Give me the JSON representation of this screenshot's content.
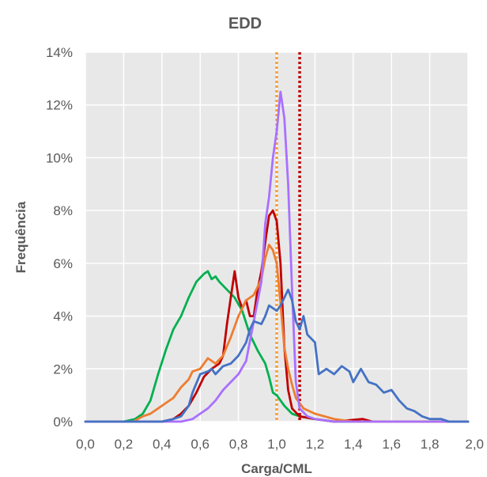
{
  "chart_data": {
    "type": "line",
    "title": "EDD",
    "xlabel": "Carga/CML",
    "ylabel": "Frequência",
    "xlim": [
      0,
      2
    ],
    "ylim": [
      0,
      0.14
    ],
    "x_ticks": [
      "0,0",
      "0,2",
      "0,4",
      "0,6",
      "0,8",
      "1,0",
      "1,2",
      "1,4",
      "1,6",
      "1,8",
      "2,0"
    ],
    "y_ticks": [
      "0%",
      "2%",
      "4%",
      "6%",
      "8%",
      "10%",
      "12%",
      "14%"
    ],
    "grid": true,
    "legend": "none",
    "background": "#e8e8e8",
    "reference_lines": [
      {
        "x": 1.0,
        "color": "#f4a040",
        "style": "dotted"
      },
      {
        "x": 1.12,
        "color": "#c00000",
        "style": "dotted"
      }
    ],
    "series": [
      {
        "color": "#00b050",
        "points": [
          [
            0.0,
            0
          ],
          [
            0.2,
            0
          ],
          [
            0.26,
            0.001
          ],
          [
            0.3,
            0.003
          ],
          [
            0.34,
            0.008
          ],
          [
            0.38,
            0.018
          ],
          [
            0.42,
            0.027
          ],
          [
            0.46,
            0.035
          ],
          [
            0.5,
            0.04
          ],
          [
            0.54,
            0.047
          ],
          [
            0.58,
            0.053
          ],
          [
            0.62,
            0.056
          ],
          [
            0.64,
            0.057
          ],
          [
            0.66,
            0.054
          ],
          [
            0.68,
            0.055
          ],
          [
            0.7,
            0.053
          ],
          [
            0.74,
            0.05
          ],
          [
            0.78,
            0.047
          ],
          [
            0.82,
            0.042
          ],
          [
            0.86,
            0.033
          ],
          [
            0.9,
            0.027
          ],
          [
            0.94,
            0.022
          ],
          [
            0.96,
            0.017
          ],
          [
            0.98,
            0.011
          ],
          [
            1.0,
            0.01
          ],
          [
            1.04,
            0.006
          ],
          [
            1.08,
            0.003
          ],
          [
            1.12,
            0.002
          ],
          [
            1.2,
            0.001
          ],
          [
            1.3,
            0
          ],
          [
            1.5,
            0
          ],
          [
            2.0,
            0
          ]
        ]
      },
      {
        "color": "#c00000",
        "points": [
          [
            0.0,
            0
          ],
          [
            0.4,
            0
          ],
          [
            0.46,
            0.001
          ],
          [
            0.5,
            0.003
          ],
          [
            0.54,
            0.006
          ],
          [
            0.58,
            0.011
          ],
          [
            0.62,
            0.017
          ],
          [
            0.66,
            0.02
          ],
          [
            0.7,
            0.022
          ],
          [
            0.72,
            0.025
          ],
          [
            0.74,
            0.037
          ],
          [
            0.76,
            0.047
          ],
          [
            0.78,
            0.057
          ],
          [
            0.8,
            0.047
          ],
          [
            0.82,
            0.043
          ],
          [
            0.84,
            0.046
          ],
          [
            0.86,
            0.04
          ],
          [
            0.88,
            0.04
          ],
          [
            0.9,
            0.05
          ],
          [
            0.92,
            0.057
          ],
          [
            0.94,
            0.068
          ],
          [
            0.96,
            0.078
          ],
          [
            0.98,
            0.08
          ],
          [
            1.0,
            0.076
          ],
          [
            1.02,
            0.06
          ],
          [
            1.04,
            0.028
          ],
          [
            1.06,
            0.012
          ],
          [
            1.08,
            0.005
          ],
          [
            1.12,
            0.002
          ],
          [
            1.2,
            0.001
          ],
          [
            1.3,
            0
          ],
          [
            1.45,
            0.001
          ],
          [
            1.5,
            0
          ],
          [
            2.0,
            0
          ]
        ]
      },
      {
        "color": "#ed7d31",
        "points": [
          [
            0.0,
            0
          ],
          [
            0.25,
            0
          ],
          [
            0.3,
            0.002
          ],
          [
            0.34,
            0.003
          ],
          [
            0.38,
            0.005
          ],
          [
            0.42,
            0.007
          ],
          [
            0.46,
            0.009
          ],
          [
            0.5,
            0.013
          ],
          [
            0.54,
            0.016
          ],
          [
            0.56,
            0.019
          ],
          [
            0.6,
            0.02
          ],
          [
            0.64,
            0.024
          ],
          [
            0.68,
            0.022
          ],
          [
            0.72,
            0.025
          ],
          [
            0.76,
            0.032
          ],
          [
            0.8,
            0.04
          ],
          [
            0.84,
            0.046
          ],
          [
            0.88,
            0.048
          ],
          [
            0.92,
            0.054
          ],
          [
            0.94,
            0.062
          ],
          [
            0.96,
            0.067
          ],
          [
            0.98,
            0.065
          ],
          [
            1.0,
            0.06
          ],
          [
            1.02,
            0.045
          ],
          [
            1.04,
            0.028
          ],
          [
            1.06,
            0.02
          ],
          [
            1.08,
            0.014
          ],
          [
            1.1,
            0.009
          ],
          [
            1.14,
            0.005
          ],
          [
            1.2,
            0.003
          ],
          [
            1.3,
            0.001
          ],
          [
            1.4,
            0
          ],
          [
            2.0,
            0
          ]
        ]
      },
      {
        "color": "#a970ff",
        "points": [
          [
            0.0,
            0
          ],
          [
            0.5,
            0
          ],
          [
            0.56,
            0.001
          ],
          [
            0.6,
            0.003
          ],
          [
            0.64,
            0.005
          ],
          [
            0.68,
            0.008
          ],
          [
            0.72,
            0.012
          ],
          [
            0.76,
            0.015
          ],
          [
            0.8,
            0.018
          ],
          [
            0.84,
            0.023
          ],
          [
            0.88,
            0.038
          ],
          [
            0.92,
            0.053
          ],
          [
            0.94,
            0.075
          ],
          [
            0.96,
            0.085
          ],
          [
            0.98,
            0.1
          ],
          [
            1.0,
            0.11
          ],
          [
            1.02,
            0.125
          ],
          [
            1.04,
            0.115
          ],
          [
            1.06,
            0.09
          ],
          [
            1.08,
            0.05
          ],
          [
            1.1,
            0.015
          ],
          [
            1.12,
            0.005
          ],
          [
            1.16,
            0.002
          ],
          [
            1.2,
            0.001
          ],
          [
            1.3,
            0
          ],
          [
            2.0,
            0
          ]
        ]
      },
      {
        "color": "#4472c4",
        "points": [
          [
            0.0,
            0
          ],
          [
            0.4,
            0
          ],
          [
            0.46,
            0.001
          ],
          [
            0.5,
            0.002
          ],
          [
            0.54,
            0.006
          ],
          [
            0.56,
            0.011
          ],
          [
            0.6,
            0.018
          ],
          [
            0.64,
            0.019
          ],
          [
            0.66,
            0.02
          ],
          [
            0.68,
            0.018
          ],
          [
            0.72,
            0.021
          ],
          [
            0.76,
            0.022
          ],
          [
            0.8,
            0.025
          ],
          [
            0.84,
            0.03
          ],
          [
            0.86,
            0.035
          ],
          [
            0.88,
            0.038
          ],
          [
            0.92,
            0.037
          ],
          [
            0.94,
            0.04
          ],
          [
            0.96,
            0.044
          ],
          [
            1.0,
            0.042
          ],
          [
            1.02,
            0.044
          ],
          [
            1.04,
            0.047
          ],
          [
            1.06,
            0.05
          ],
          [
            1.08,
            0.046
          ],
          [
            1.1,
            0.038
          ],
          [
            1.12,
            0.035
          ],
          [
            1.14,
            0.04
          ],
          [
            1.16,
            0.033
          ],
          [
            1.2,
            0.03
          ],
          [
            1.22,
            0.018
          ],
          [
            1.26,
            0.02
          ],
          [
            1.3,
            0.018
          ],
          [
            1.34,
            0.021
          ],
          [
            1.38,
            0.019
          ],
          [
            1.4,
            0.015
          ],
          [
            1.44,
            0.02
          ],
          [
            1.48,
            0.015
          ],
          [
            1.52,
            0.014
          ],
          [
            1.56,
            0.011
          ],
          [
            1.6,
            0.012
          ],
          [
            1.64,
            0.008
          ],
          [
            1.68,
            0.005
          ],
          [
            1.72,
            0.004
          ],
          [
            1.76,
            0.002
          ],
          [
            1.8,
            0.001
          ],
          [
            1.86,
            0.001
          ],
          [
            1.9,
            0
          ],
          [
            2.0,
            0
          ]
        ]
      }
    ]
  }
}
